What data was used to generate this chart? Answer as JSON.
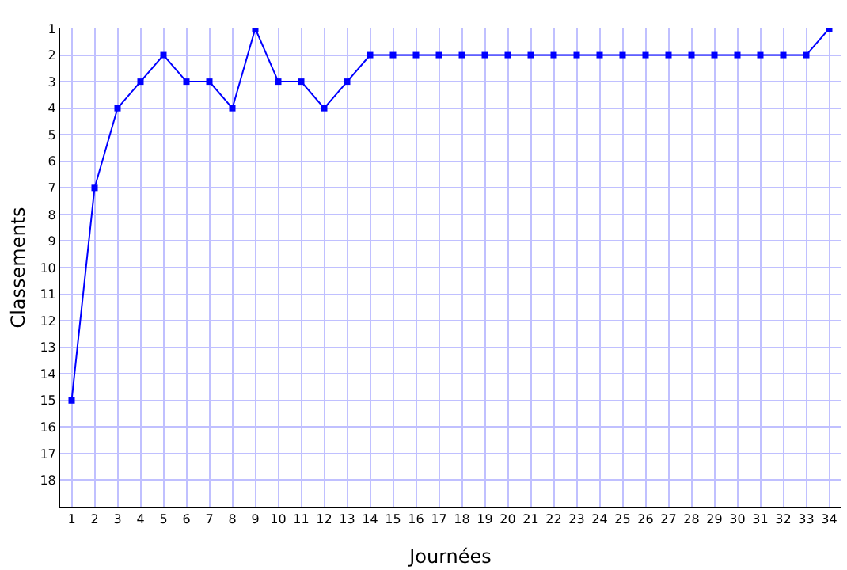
{
  "chart_data": {
    "type": "line",
    "xlabel": "Journées",
    "ylabel": "Classements",
    "x": [
      1,
      2,
      3,
      4,
      5,
      6,
      7,
      8,
      9,
      10,
      11,
      12,
      13,
      14,
      15,
      16,
      17,
      18,
      19,
      20,
      21,
      22,
      23,
      24,
      25,
      26,
      27,
      28,
      29,
      30,
      31,
      32,
      33,
      34
    ],
    "series": [
      {
        "color": "#0000ff",
        "values": [
          15,
          7,
          4,
          3,
          2,
          3,
          3,
          4,
          1,
          3,
          3,
          4,
          3,
          2,
          2,
          2,
          2,
          2,
          2,
          2,
          2,
          2,
          2,
          2,
          2,
          2,
          2,
          2,
          2,
          2,
          2,
          2,
          2,
          1
        ]
      }
    ],
    "xlim": [
      0.5,
      34.5
    ],
    "xticks": [
      1,
      2,
      3,
      4,
      5,
      6,
      7,
      8,
      9,
      10,
      11,
      12,
      13,
      14,
      15,
      16,
      17,
      18,
      19,
      20,
      21,
      22,
      23,
      24,
      25,
      26,
      27,
      28,
      29,
      30,
      31,
      32,
      33,
      34
    ],
    "ylim": [
      19,
      1
    ],
    "yticks": [
      1,
      2,
      3,
      4,
      5,
      6,
      7,
      8,
      9,
      10,
      11,
      12,
      13,
      14,
      15,
      16,
      17,
      18
    ],
    "grid": true,
    "marker": "square",
    "line_style": "solid"
  }
}
